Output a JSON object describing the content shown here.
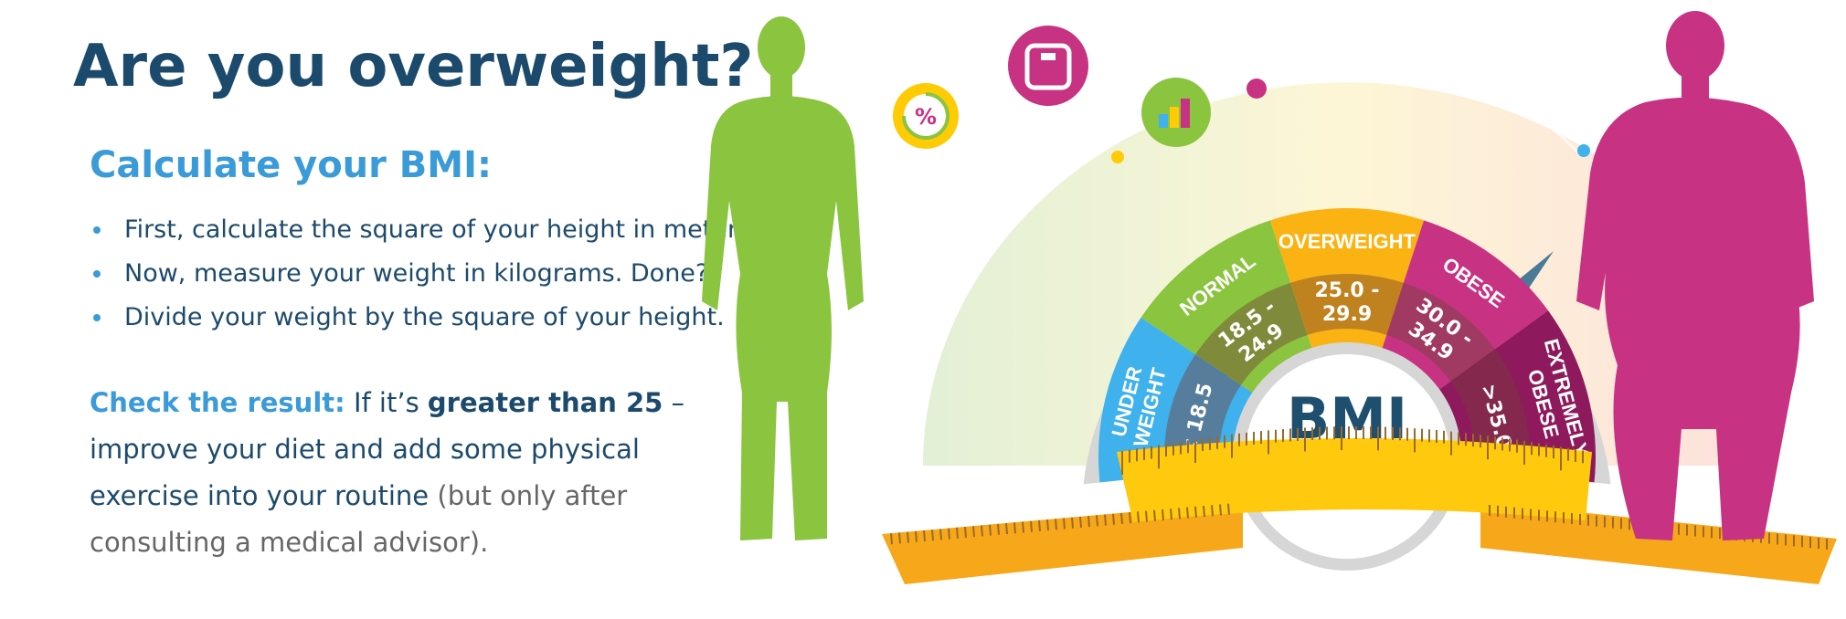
{
  "heading": "Are you overweight?",
  "subheading": "Calculate your BMI:",
  "steps": [
    "First, calculate the square of your height in meters.",
    "Now, measure your weight in kilograms. Done?",
    "Divide your weight by the square of your height."
  ],
  "result": {
    "lead": "Check the result:",
    "text1": "If it’s ",
    "bold": "greater than 25",
    "text2": " – improve your diet and add some physical exercise into your routine",
    "muted": " (but only after consulting a medical advisor)."
  },
  "gauge": {
    "center_label": "BMI",
    "segments": [
      {
        "name": "UNDER WEIGHT",
        "lines": [
          "UNDER",
          "WEIGHT"
        ],
        "range": "< 18.5",
        "color": "#3fb1ec",
        "dark": "#567e9c"
      },
      {
        "name": "NORMAL",
        "lines": [
          "NORMAL"
        ],
        "range_lines": [
          "18.5 -",
          "24.9"
        ],
        "color": "#8bc43f",
        "dark": "#7f8a3a"
      },
      {
        "name": "OVERWEIGHT",
        "lines": [
          "OVERWEIGHT"
        ],
        "range_lines": [
          "25.0 -",
          "29.9"
        ],
        "color": "#fbb314",
        "dark": "#c0821e"
      },
      {
        "name": "OBESE",
        "lines": [
          "OBESE"
        ],
        "range_lines": [
          "30.0 -",
          "34.9"
        ],
        "color": "#c83282",
        "dark": "#a13a63"
      },
      {
        "name": "EXTREMELY OBESE",
        "lines": [
          "EXTREMELY",
          "OBESE"
        ],
        "range": ">35.0",
        "color": "#8e1a5d",
        "dark": "#84284e"
      }
    ],
    "needle_color": "#4a7a96"
  },
  "icons": [
    "percent-icon",
    "scale-icon",
    "bar-chart-icon"
  ],
  "colors": {
    "heading": "#1c4a6c",
    "accent": "#3a9bd8",
    "thin_figure": "#8bc43f",
    "heavy_figure": "#c83282",
    "tape": "#ffc90e"
  }
}
